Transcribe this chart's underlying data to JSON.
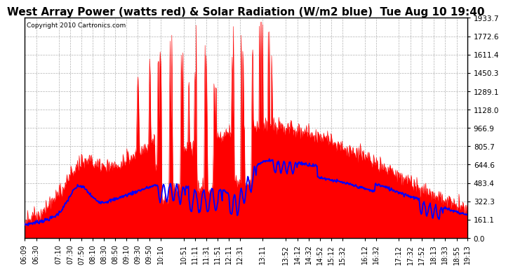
{
  "title": "West Array Power (watts red) & Solar Radiation (W/m2 blue)  Tue Aug 10 19:40",
  "copyright": "Copyright 2010 Cartronics.com",
  "ymax": 1933.7,
  "ymin": 0.0,
  "yticks": [
    0.0,
    161.1,
    322.3,
    483.4,
    644.6,
    805.7,
    966.9,
    1128.0,
    1289.1,
    1450.3,
    1611.4,
    1772.6,
    1933.7
  ],
  "bg_color": "#ffffff",
  "plot_bg_color": "#ffffff",
  "red_color": "#ff0000",
  "blue_color": "#0000ff",
  "title_fontsize": 11,
  "xlabel_fontsize": 7,
  "ylabel_fontsize": 7.5,
  "xtick_labels": [
    "06:09",
    "06:30",
    "07:10",
    "07:30",
    "07:50",
    "08:10",
    "08:30",
    "08:50",
    "09:10",
    "09:30",
    "09:50",
    "10:10",
    "10:51",
    "11:11",
    "11:31",
    "11:51",
    "12:11",
    "12:31",
    "13:11",
    "13:52",
    "14:12",
    "14:32",
    "14:52",
    "15:12",
    "15:32",
    "16:12",
    "16:32",
    "17:12",
    "17:32",
    "17:52",
    "18:13",
    "18:33",
    "18:55",
    "19:13"
  ]
}
